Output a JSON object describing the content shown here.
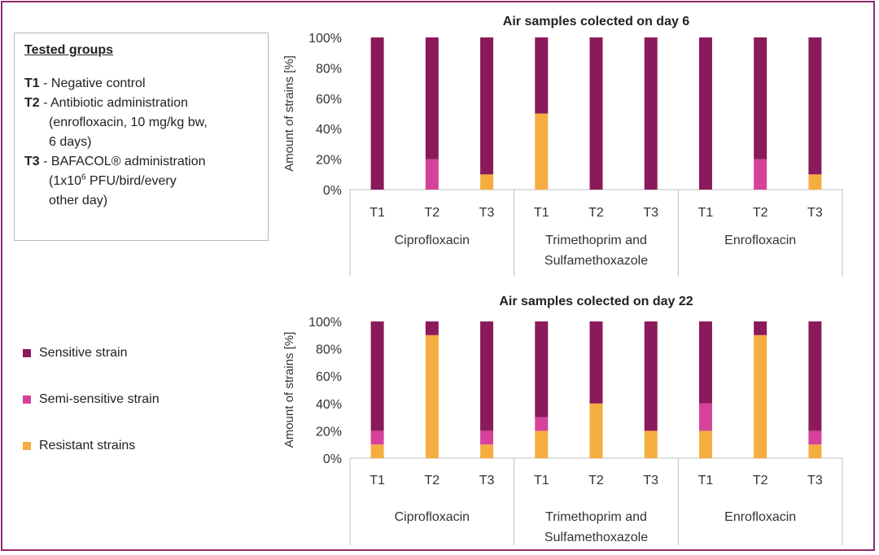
{
  "groups_box": {
    "title": "Tested groups",
    "items": [
      {
        "code": "T1",
        "text": " - Negative control",
        "cont": []
      },
      {
        "code": "T2",
        "text": " - Antibiotic administration",
        "cont": [
          "(enrofloxacin, 10 mg/kg bw,",
          "6 days)"
        ]
      },
      {
        "code": "T3",
        "text": " - BAFACOL® administration",
        "cont_first": [
          "(1x10",
          "6",
          " PFU/bird/every"
        ],
        "cont": [
          "other day)"
        ]
      }
    ]
  },
  "legend": [
    {
      "label": "Sensitive strain",
      "color": "#8b1a5a"
    },
    {
      "label": "Semi-sensitive strain",
      "color": "#d6419b"
    },
    {
      "label": "Resistant strains",
      "color": "#f5ad3f"
    }
  ],
  "chart_data": [
    {
      "type": "bar",
      "stacked": true,
      "percent": true,
      "title": "Air samples colected on day 6",
      "ylabel": "Amount of strains [%]",
      "ylim": [
        0,
        100
      ],
      "yticks": [
        "0%",
        "20%",
        "40%",
        "60%",
        "80%",
        "100%"
      ],
      "categories": [
        "T1",
        "T2",
        "T3",
        "T1",
        "T2",
        "T3",
        "T1",
        "T2",
        "T3"
      ],
      "groups": [
        {
          "label": [
            "Ciprofloxacin"
          ],
          "span": 3
        },
        {
          "label": [
            "Trimethoprim and",
            "Sulfamethoxazole"
          ],
          "span": 3
        },
        {
          "label": [
            "Enrofloxacin"
          ],
          "span": 3
        }
      ],
      "series": [
        {
          "name": "Resistant strains",
          "color": "#f5ad3f",
          "values": [
            0,
            0,
            10,
            50,
            0,
            0,
            0,
            0,
            10
          ]
        },
        {
          "name": "Semi-sensitive strain",
          "color": "#d6419b",
          "values": [
            0,
            20,
            0,
            0,
            0,
            0,
            0,
            20,
            0
          ]
        },
        {
          "name": "Sensitive strain",
          "color": "#8b1a5a",
          "values": [
            100,
            80,
            90,
            50,
            100,
            100,
            100,
            80,
            90
          ]
        }
      ]
    },
    {
      "type": "bar",
      "stacked": true,
      "percent": true,
      "title": "Air samples colected on day 22",
      "ylabel": "Amount of strains [%]",
      "ylim": [
        0,
        100
      ],
      "yticks": [
        "0%",
        "20%",
        "40%",
        "60%",
        "80%",
        "100%"
      ],
      "categories": [
        "T1",
        "T2",
        "T3",
        "T1",
        "T2",
        "T3",
        "T1",
        "T2",
        "T3"
      ],
      "groups": [
        {
          "label": [
            "Ciprofloxacin"
          ],
          "span": 3
        },
        {
          "label": [
            "Trimethoprim and",
            "Sulfamethoxazole"
          ],
          "span": 3
        },
        {
          "label": [
            "Enrofloxacin"
          ],
          "span": 3
        }
      ],
      "series": [
        {
          "name": "Resistant strains",
          "color": "#f5ad3f",
          "values": [
            10,
            90,
            10,
            20,
            40,
            20,
            20,
            90,
            10
          ]
        },
        {
          "name": "Semi-sensitive strain",
          "color": "#d6419b",
          "values": [
            10,
            0,
            10,
            10,
            0,
            0,
            20,
            0,
            10
          ]
        },
        {
          "name": "Sensitive strain",
          "color": "#8b1a5a",
          "values": [
            80,
            10,
            80,
            70,
            60,
            80,
            60,
            10,
            80
          ]
        }
      ]
    }
  ]
}
